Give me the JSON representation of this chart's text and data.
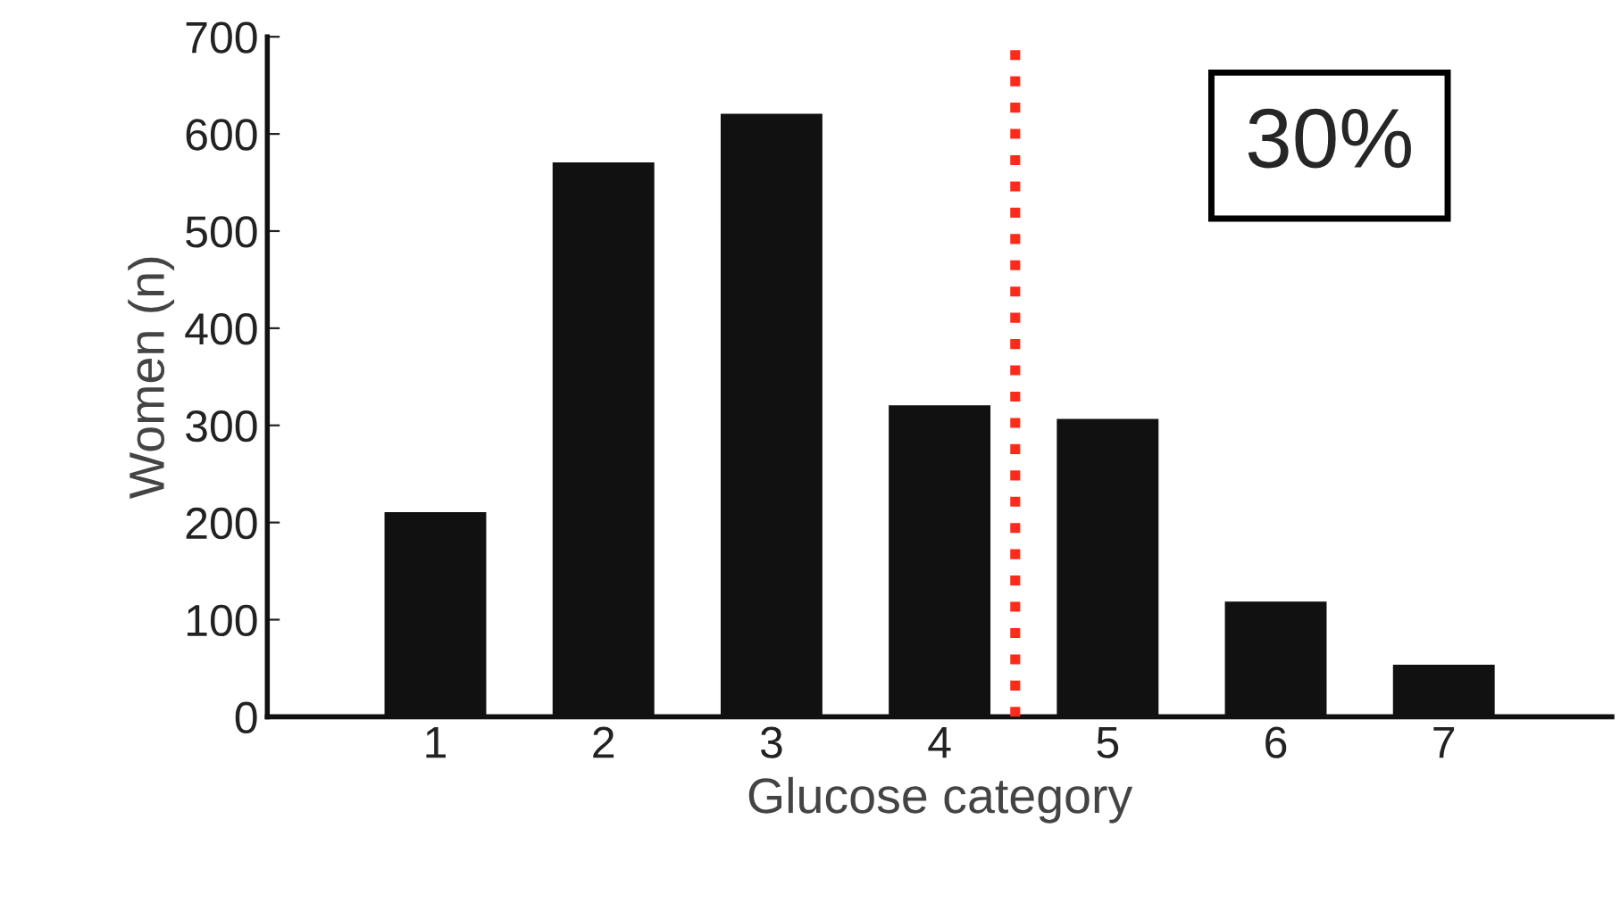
{
  "chart_data": {
    "type": "bar",
    "xlabel": "Glucose category",
    "ylabel": "Women (n)",
    "x": [
      1,
      2,
      3,
      4,
      5,
      6,
      7
    ],
    "values": [
      212,
      572,
      622,
      322,
      308,
      120,
      55
    ],
    "color": "#111111",
    "xlim": [
      0,
      8
    ],
    "xticks": [
      1,
      2,
      3,
      4,
      5,
      6,
      7
    ],
    "ylim": [
      0,
      700
    ],
    "yticks": [
      0,
      100,
      200,
      300,
      400,
      500,
      600,
      700
    ],
    "ref_lines": [
      {
        "axis": "x",
        "value": 4.45,
        "color": "#ff2a1a",
        "line_style": "dotted"
      }
    ],
    "annotations": [
      "30%"
    ],
    "grid": false,
    "legend": false
  }
}
